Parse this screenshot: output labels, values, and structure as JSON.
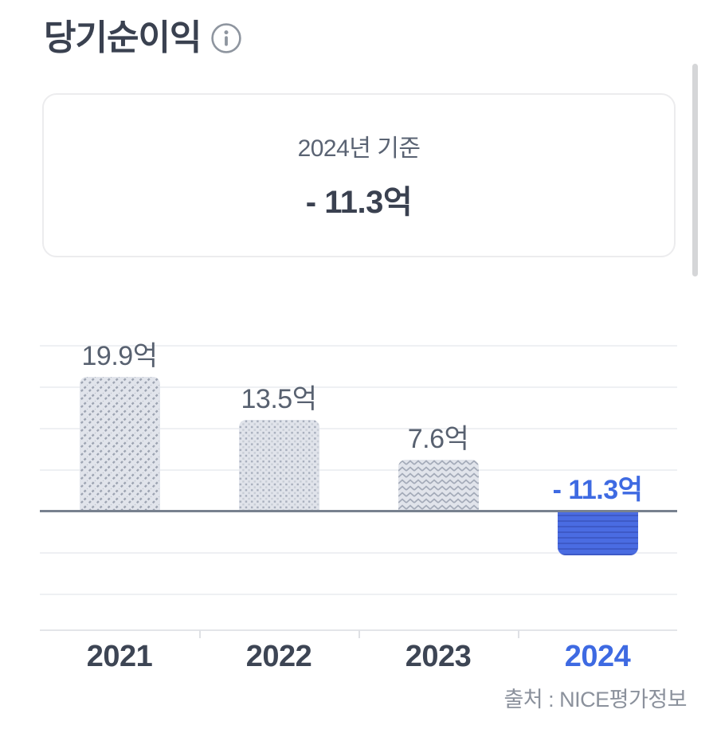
{
  "page": {
    "title": "당기순이익"
  },
  "summary_card": {
    "caption": "2024년 기준",
    "value": "- 11.3억"
  },
  "chart_data": {
    "type": "bar",
    "title": "당기순이익",
    "unit": "억",
    "categories": [
      "2021",
      "2022",
      "2023",
      "2024"
    ],
    "values": [
      19.9,
      13.5,
      7.6,
      -11.3
    ],
    "value_labels": [
      "19.9억",
      "13.5억",
      "7.6억",
      "- 11.3억"
    ],
    "highlight_category": "2024",
    "baseline": 0,
    "grid": true,
    "legend": "none",
    "patterns": [
      "diagonal-dashes",
      "checker-dots",
      "zigzag",
      "horizontal-stripes"
    ],
    "colors": {
      "neutral_bar_bg": "#e1e4eb",
      "pattern_ink": "#a3aab8",
      "highlight_bar": "#4a6ce2",
      "highlight_stripe": "#3c58c4",
      "highlight_text": "#3e6ae2",
      "value_label_text": "#586170",
      "year_label_text": "#3d4554",
      "zero_line": "#78818f",
      "gridline": "#eef0f3"
    }
  },
  "source": {
    "label": "출처 : NICE평가정보"
  }
}
